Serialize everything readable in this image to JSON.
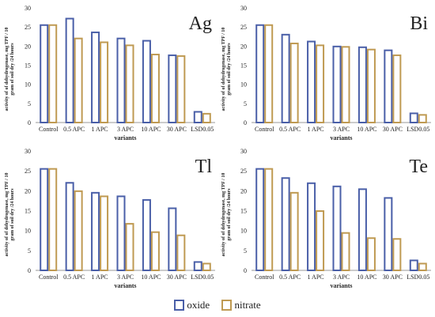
{
  "colors": {
    "oxide": "#4a5fa8",
    "nitrate": "#bf9a52",
    "axis": "#9a9a9a"
  },
  "legend": [
    {
      "key": "oxide",
      "label": "oxide"
    },
    {
      "key": "nitrate",
      "label": "nitrate"
    }
  ],
  "chart_data": [
    {
      "type": "bar",
      "letter": "Ag",
      "categories": [
        "Control",
        "0.5 APC",
        "1 APC",
        "3 APC",
        "10 APC",
        "30 APC",
        "LSD0.05"
      ],
      "series": [
        {
          "name": "oxide",
          "values": [
            25.5,
            27.2,
            23.6,
            22.0,
            21.4,
            17.6,
            2.8
          ]
        },
        {
          "name": "nitrate",
          "values": [
            25.5,
            22.0,
            21.0,
            20.2,
            17.8,
            17.4,
            2.3
          ]
        }
      ],
      "xlabel": "variants",
      "ylabel": "activity of of dehydrogenase, mg TPF / 10 gram of soil dry /24 hours",
      "ylim": [
        0,
        30
      ],
      "yticks": [
        0,
        5,
        10,
        15,
        20,
        25,
        30
      ]
    },
    {
      "type": "bar",
      "letter": "Bi",
      "categories": [
        "Control",
        "0.5 APC",
        "1 APC",
        "3 APC",
        "10 APC",
        "30 APC",
        "LSD0.05"
      ],
      "series": [
        {
          "name": "oxide",
          "values": [
            25.5,
            23.0,
            21.2,
            19.9,
            19.7,
            18.9,
            2.4
          ]
        },
        {
          "name": "nitrate",
          "values": [
            25.5,
            20.7,
            20.2,
            19.8,
            19.1,
            17.6,
            2.0
          ]
        }
      ],
      "xlabel": "variants",
      "ylabel": "activity of of dehydrogenase, mg TPF / 10 gram of soil dry /24 hours",
      "ylim": [
        0,
        30
      ],
      "yticks": [
        0,
        5,
        10,
        15,
        20,
        25,
        30
      ]
    },
    {
      "type": "bar",
      "letter": "Tl",
      "categories": [
        "Control",
        "0.5 APC",
        "1 APC",
        "3 APC",
        "10 APC",
        "30 APC",
        "LSD0.05"
      ],
      "series": [
        {
          "name": "oxide",
          "values": [
            25.5,
            22.0,
            19.5,
            18.6,
            17.7,
            15.6,
            2.1
          ]
        },
        {
          "name": "nitrate",
          "values": [
            25.5,
            19.9,
            18.6,
            11.7,
            9.6,
            8.8,
            1.7
          ]
        }
      ],
      "xlabel": "variants",
      "ylabel": "activity of of dehydrogenase, mg TPF / 10 gram of soil dry /24 hours",
      "ylim": [
        0,
        30
      ],
      "yticks": [
        0,
        5,
        10,
        15,
        20,
        25,
        30
      ]
    },
    {
      "type": "bar",
      "letter": "Te",
      "categories": [
        "Control",
        "0.5 APC",
        "1 APC",
        "3 APC",
        "10 APC",
        "30 APC",
        "LSD0.05"
      ],
      "series": [
        {
          "name": "oxide",
          "values": [
            25.5,
            23.2,
            21.9,
            21.1,
            20.4,
            18.2,
            2.5
          ]
        },
        {
          "name": "nitrate",
          "values": [
            25.5,
            19.5,
            14.9,
            9.4,
            8.1,
            7.9,
            1.7
          ]
        }
      ],
      "xlabel": "variants",
      "ylabel": "activity of of dehydrogenase, mg TPF / 10 gram of soil dry /24 hours",
      "ylim": [
        0,
        30
      ],
      "yticks": [
        0,
        5,
        10,
        15,
        20,
        25,
        30
      ]
    }
  ]
}
